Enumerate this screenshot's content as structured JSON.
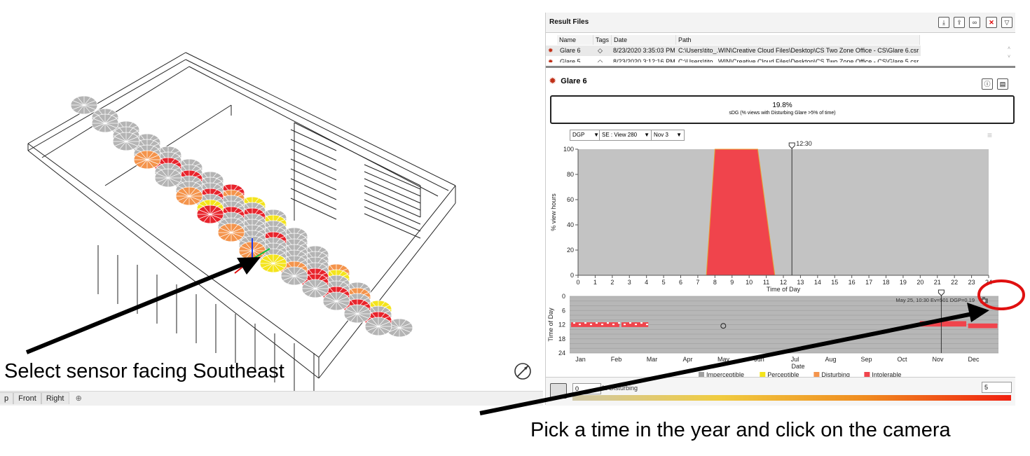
{
  "viewport": {
    "tabs": [
      "p",
      "Front",
      "Right"
    ],
    "add_tab_icon": "plus-icon",
    "compass_icon": "compass-icon"
  },
  "annotations": {
    "left_caption": "Select sensor facing Southeast",
    "bottom_caption": "Pick a time in the year and click on the camera"
  },
  "result_files": {
    "title": "Result Files",
    "toolbar_icons": [
      "download-icon",
      "export-icon",
      "link-icon",
      "delete-icon",
      "filter-icon"
    ],
    "columns": [
      "Name",
      "Tags",
      "Date",
      "Path"
    ],
    "rows": [
      {
        "name": "Glare 6",
        "date": "8/23/2020 3:35:03 PM",
        "path": "C:\\Users\\tito_.WIN\\Creative Cloud Files\\Desktop\\CS Two Zone Office - CS\\Glare 6.csr"
      },
      {
        "name": "Glare 5",
        "date": "8/23/2020 3:12:16 PM",
        "path": "C:\\Users\\tito_.WIN\\Creative Cloud Files\\Desktop\\CS Two Zone Office - CS\\Glare 5.csr"
      }
    ]
  },
  "glare": {
    "title": "Glare 6",
    "sdg_value": "19.8%",
    "sdg_label": "sDG (% views with Disturbing Glare >5% of time)",
    "metric_select": "DGP",
    "view_select": "SE : View 280",
    "date_select": "Nov 3",
    "marker_time": "12:30",
    "readout": "May 25, 10:30 Ev=501 DGP=0.19",
    "bottom_input_left": "0",
    "bottom_label": "% Disturbing",
    "bottom_input_right": "5"
  },
  "chart_data": [
    {
      "type": "area",
      "title": "",
      "xlabel": "Time of Day",
      "ylabel": "% view hours",
      "xlim": [
        0,
        24
      ],
      "ylim": [
        0,
        100
      ],
      "x_ticks": [
        0,
        1,
        2,
        3,
        4,
        5,
        6,
        7,
        8,
        9,
        10,
        11,
        12,
        13,
        14,
        15,
        16,
        17,
        18,
        19,
        20,
        21,
        22,
        23,
        24
      ],
      "y_ticks": [
        0,
        20,
        40,
        60,
        80,
        100
      ],
      "grid": false,
      "series": [
        {
          "x": [
            0,
            7.5,
            8,
            10.5,
            11.5,
            24
          ],
          "y": [
            0,
            0,
            100,
            100,
            0,
            0
          ],
          "color": "#f0444c"
        }
      ],
      "marker_x": 12.5
    },
    {
      "type": "heatmap",
      "title": "",
      "xlabel": "Date",
      "ylabel": "Time of Day",
      "x_ticks": [
        "Jan",
        "Feb",
        "Mar",
        "Apr",
        "May",
        "Jun",
        "Jul",
        "Aug",
        "Sep",
        "Oct",
        "Nov",
        "Dec"
      ],
      "y_ticks": [
        0,
        6,
        12,
        18,
        24
      ],
      "ylim": [
        0,
        24
      ],
      "legend": [
        "Imperceptible",
        "Perceptible",
        "Disturbing",
        "Intolerable"
      ],
      "legend_colors": [
        "#a0a0a0",
        "#f4e41c",
        "#f4944c",
        "#f0444c"
      ],
      "legend_position": "bottom",
      "marker_month": "Nov",
      "marker_hour": 12.5
    }
  ]
}
